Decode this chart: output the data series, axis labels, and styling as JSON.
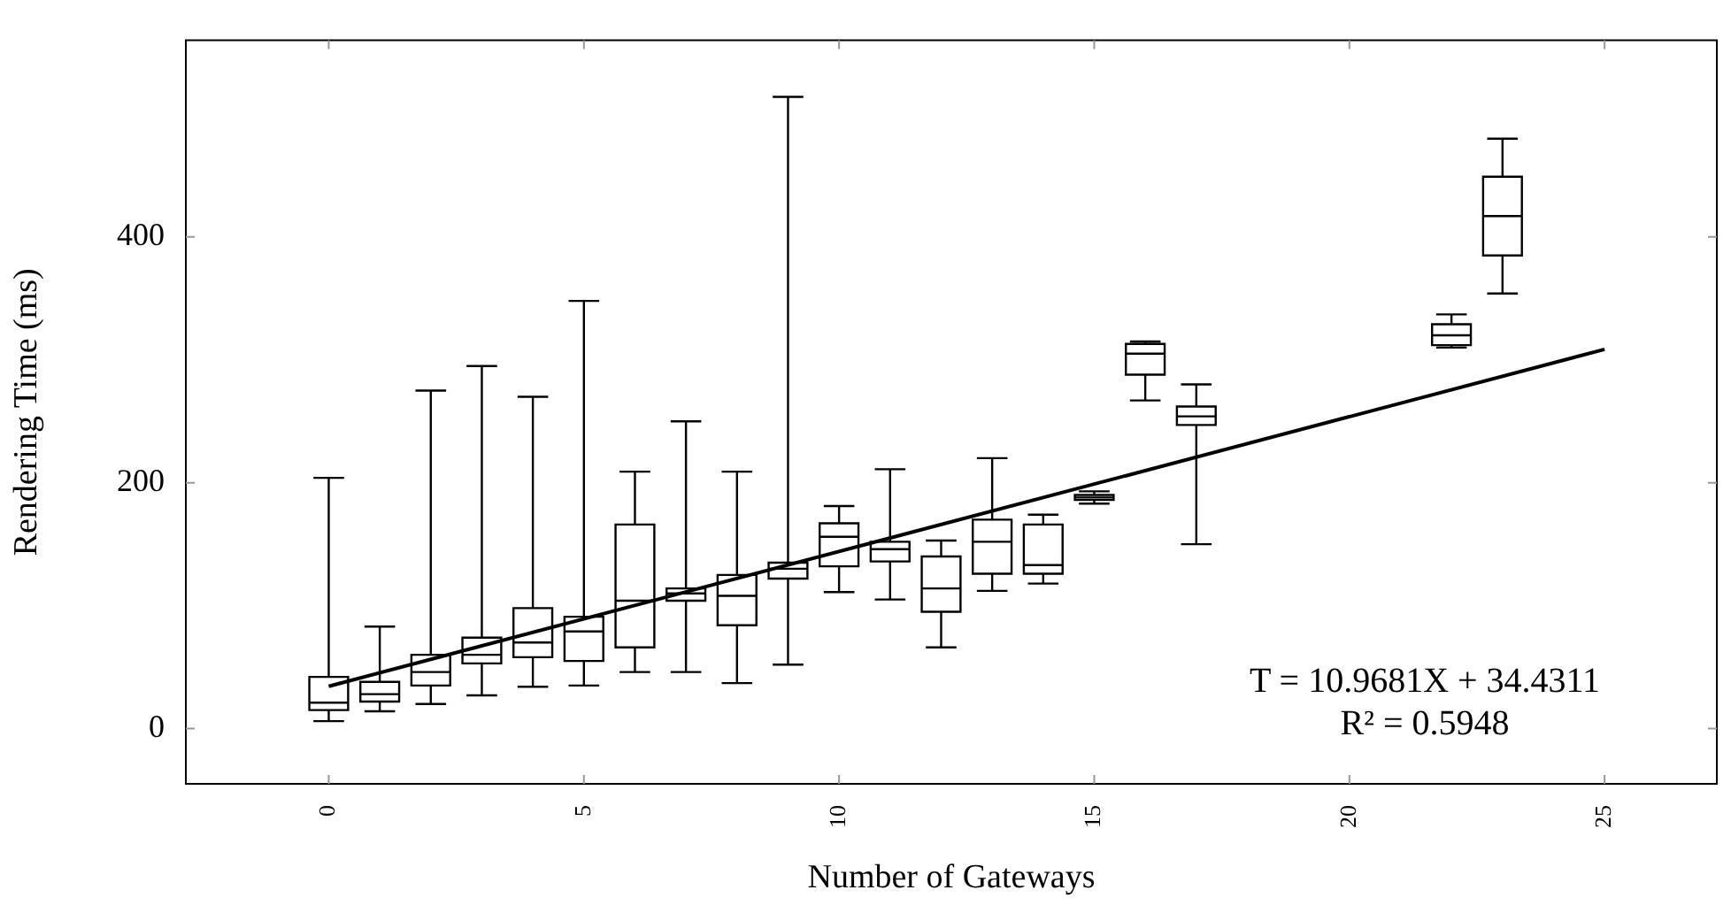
{
  "chart_data": {
    "type": "box",
    "xlabel": "Number of Gateways",
    "ylabel": "Rendering Time (ms)",
    "x": [
      0,
      1,
      2,
      3,
      4,
      5,
      6,
      7,
      8,
      9,
      10,
      11,
      12,
      13,
      14,
      15,
      16,
      17,
      22,
      23
    ],
    "color": "#000000",
    "boxes": [
      {
        "low": 6,
        "q1": 15,
        "median": 21,
        "q3": 42,
        "high": 204
      },
      {
        "low": 14,
        "q1": 22,
        "median": 28,
        "q3": 38,
        "high": 83
      },
      {
        "low": 20,
        "q1": 35,
        "median": 46,
        "q3": 60,
        "high": 275
      },
      {
        "low": 27,
        "q1": 53,
        "median": 60,
        "q3": 74,
        "high": 295
      },
      {
        "low": 34,
        "q1": 58,
        "median": 70,
        "q3": 98,
        "high": 270
      },
      {
        "low": 35,
        "q1": 55,
        "median": 79,
        "q3": 91,
        "high": 348
      },
      {
        "low": 46,
        "q1": 66,
        "median": 104,
        "q3": 166,
        "high": 209
      },
      {
        "low": 46,
        "q1": 104,
        "median": 110,
        "q3": 114,
        "high": 250
      },
      {
        "low": 37,
        "q1": 84,
        "median": 108,
        "q3": 125,
        "high": 209
      },
      {
        "low": 52,
        "q1": 122,
        "median": 130,
        "q3": 135,
        "high": 514
      },
      {
        "low": 111,
        "q1": 132,
        "median": 156,
        "q3": 167,
        "high": 181
      },
      {
        "low": 105,
        "q1": 136,
        "median": 146,
        "q3": 152,
        "high": 211
      },
      {
        "low": 66,
        "q1": 95,
        "median": 114,
        "q3": 140,
        "high": 153
      },
      {
        "low": 112,
        "q1": 126,
        "median": 152,
        "q3": 170,
        "high": 220
      },
      {
        "low": 118,
        "q1": 126,
        "median": 133,
        "q3": 166,
        "high": 174
      },
      {
        "low": 183,
        "q1": 186,
        "median": 188,
        "q3": 190,
        "high": 193
      },
      {
        "low": 267,
        "q1": 288,
        "median": 305,
        "q3": 313,
        "high": 315
      },
      {
        "low": 150,
        "q1": 247,
        "median": 254,
        "q3": 262,
        "high": 280
      },
      {
        "low": 310,
        "q1": 312,
        "median": 320,
        "q3": 329,
        "high": 337
      },
      {
        "low": 354,
        "q1": 385,
        "median": 417,
        "q3": 449,
        "high": 480
      }
    ],
    "series": [
      {
        "type": "line",
        "color": "#000000",
        "x": [
          0,
          25
        ],
        "values": [
          34.4,
          308.6
        ]
      }
    ],
    "xlim": [
      -2.8,
      27.2
    ],
    "xticks": [
      0,
      5,
      10,
      15,
      20,
      25
    ],
    "ylim": [
      -45,
      560
    ],
    "yticks": [
      0,
      200,
      400
    ],
    "grid": false,
    "legend": false,
    "marker": "none",
    "annotations": [
      {
        "text": "T = 10.9681X + 34.4311"
      },
      {
        "text": "R² = 0.5948"
      }
    ]
  }
}
